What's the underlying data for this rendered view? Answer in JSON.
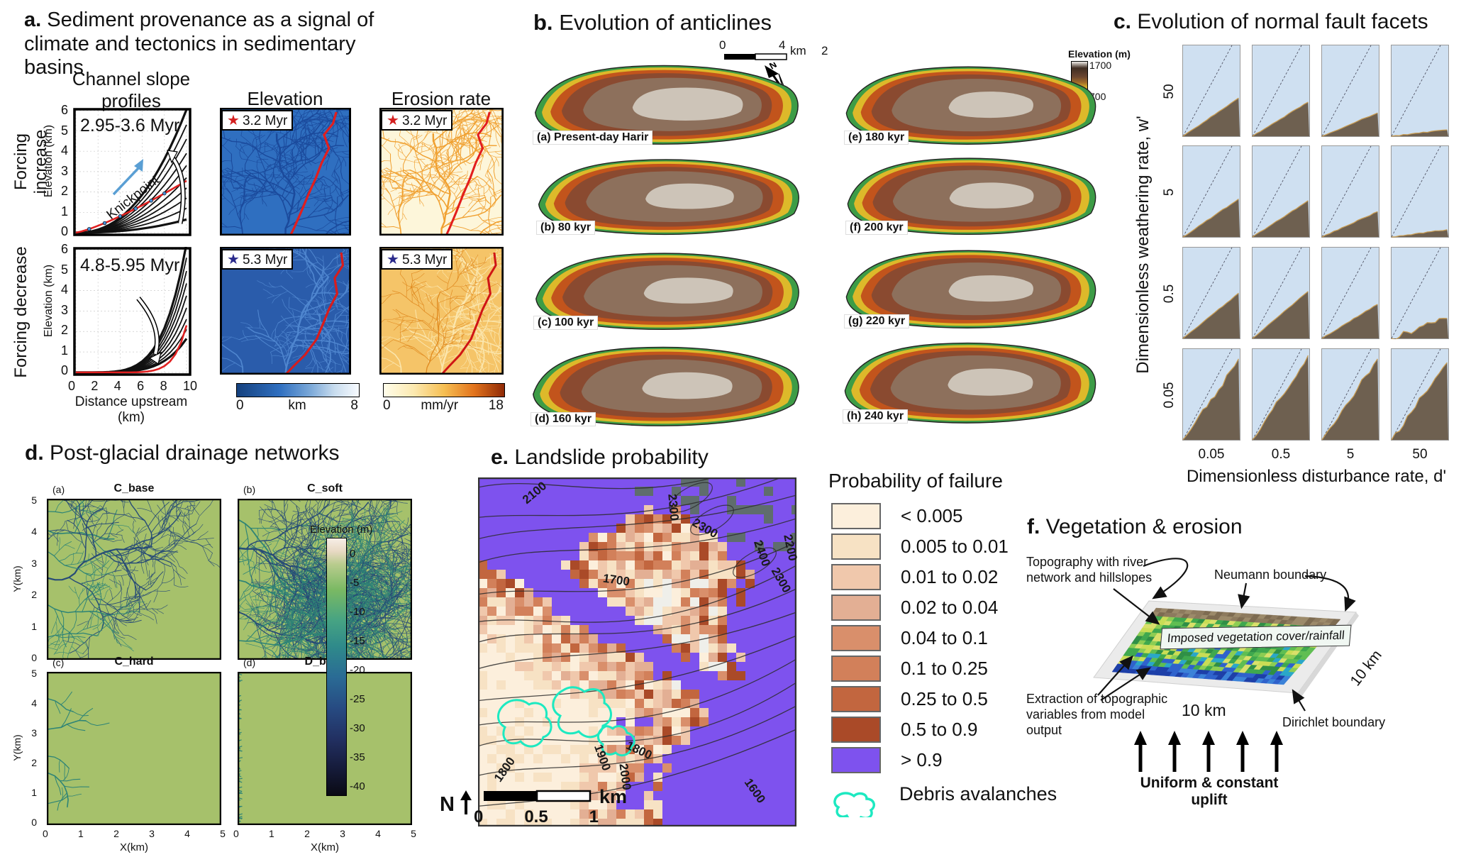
{
  "panel_a": {
    "tag": "a.",
    "title": "Sediment provenance as a signal of climate and tectonics in sedimentary basins",
    "header_channel_1": "Channel slope",
    "header_channel_2": "profiles",
    "header_elevation": "Elevation",
    "header_erosion": "Erosion rate",
    "row_top": "Forcing increase",
    "row_bottom": "Forcing decrease",
    "period_top": "2.95-3.6 Myr",
    "period_bottom": "4.8-5.95 Myr",
    "knickpoint": "Knickpoint",
    "star": "★",
    "star_color_top": "#d42020",
    "star_color_bottom": "#2a2a8c",
    "badge_top": "3.2 Myr",
    "badge_bottom": "5.3 Myr",
    "ylabel": "Elevation (km)",
    "xlabel": "Distance upstream (km)",
    "yticks": [
      "6",
      "5",
      "4",
      "3",
      "2",
      "1",
      "0"
    ],
    "xticks": [
      "0",
      "2",
      "4",
      "6",
      "8",
      "10"
    ],
    "elev_cbar": {
      "min": "0",
      "unit": "km",
      "max": "8"
    },
    "ero_cbar": {
      "min": "0",
      "unit": "mm/yr",
      "max": "18"
    }
  },
  "panel_b": {
    "tag": "b.",
    "title": "Evolution of anticlines",
    "scale_left": "0",
    "scale_right": "4",
    "scale_unit": "km",
    "north": "N",
    "stray_2": "2",
    "cbar_title": "Elevation (m)",
    "cbar_top": "1700",
    "cbar_bottom": "700",
    "maps": [
      {
        "label": "(a) Present-day Harir"
      },
      {
        "label": "(b) 80 kyr"
      },
      {
        "label": "(c) 100 kyr"
      },
      {
        "label": "(d) 160 kyr"
      },
      {
        "label": "(e) 180 kyr"
      },
      {
        "label": "(f) 200 kyr"
      },
      {
        "label": "(g) 220 kyr"
      },
      {
        "label": "(h) 240 kyr"
      }
    ]
  },
  "panel_c": {
    "tag": "c.",
    "title": "Evolution of normal fault facets",
    "ylabel": "Dimensionless weathering rate, w'",
    "xlabel": "Dimensionless disturbance rate, d'",
    "row_values": [
      "50",
      "5",
      "0.5",
      "0.05"
    ],
    "col_values": [
      "0.05",
      "0.5",
      "5",
      "50"
    ],
    "facets": [
      {
        "h": 0.42,
        "j": false
      },
      {
        "h": 0.38,
        "j": false
      },
      {
        "h": 0.26,
        "j": false
      },
      {
        "h": 0.07,
        "j": false
      },
      {
        "h": 0.42,
        "j": false
      },
      {
        "h": 0.4,
        "j": false
      },
      {
        "h": 0.28,
        "j": false
      },
      {
        "h": 0.08,
        "j": false
      },
      {
        "h": 0.5,
        "j": false
      },
      {
        "h": 0.52,
        "j": false
      },
      {
        "h": 0.38,
        "j": false
      },
      {
        "h": 0.24,
        "j": true
      },
      {
        "h": 0.88,
        "j": true
      },
      {
        "h": 0.92,
        "j": true
      },
      {
        "h": 0.9,
        "j": true
      },
      {
        "h": 0.87,
        "j": true
      }
    ]
  },
  "panel_d": {
    "tag": "d.",
    "title": "Post-glacial drainage networks",
    "subplots": [
      {
        "tag": "(a)",
        "name": "C_base"
      },
      {
        "tag": "(b)",
        "name": "C_soft"
      },
      {
        "tag": "(c)",
        "name": "C_hard"
      },
      {
        "tag": "(d)",
        "name": "D_base"
      }
    ],
    "xlabel": "X(km)",
    "ylabel": "Y(km)",
    "axis_ticks": [
      "0",
      "1",
      "2",
      "3",
      "4",
      "5"
    ],
    "cbar_title": "Elevation (m)",
    "cbar_ticks": [
      "0",
      "-5",
      "-10",
      "-15",
      "-20",
      "-25",
      "-30",
      "-35",
      "-40"
    ]
  },
  "panel_e": {
    "tag": "e.",
    "title": "Landslide probability",
    "legend_title": "Probability of failure",
    "classes": [
      {
        "label": "< 0.005",
        "color": "#fcefdc"
      },
      {
        "label": "0.005 to 0.01",
        "color": "#f7e2c4"
      },
      {
        "label": "0.01 to 0.02",
        "color": "#f0c8ac"
      },
      {
        "label": "0.02 to 0.04",
        "color": "#e3af94"
      },
      {
        "label": "0.04 to 0.1",
        "color": "#d98f6b"
      },
      {
        "label": "0.1 to 0.25",
        "color": "#d2805a"
      },
      {
        "label": "0.25 to 0.5",
        "color": "#c2663f"
      },
      {
        "label": "0.5 to 0.9",
        "color": "#aa4a28"
      },
      {
        "label": "> 0.9",
        "color": "#7e52ee"
      }
    ],
    "debris_label": "Debris avalanches",
    "debris_color": "#1de9c1",
    "north": "N",
    "scale_ticks": [
      "0",
      "0.5",
      "1"
    ],
    "scale_unit": "km",
    "contour_labels": [
      "2100",
      "2300",
      "2300",
      "2400",
      "2200",
      "2300",
      "1700",
      "1800",
      "1900",
      "2000",
      "1800",
      "1600"
    ]
  },
  "panel_f": {
    "tag": "f.",
    "title": "Vegetation & erosion",
    "ann_topography": "Topography with river network and hillslopes",
    "ann_neumann": "Neumann boundary",
    "ann_imposed": "Imposed vegetation cover/rainfall",
    "ann_extraction": "Extraction of topographic variables from model output",
    "ann_dirichlet": "Dirichlet boundary",
    "ann_uplift": "Uniform & constant uplift",
    "dim_bottom": "10 km",
    "dim_right": "10 km"
  }
}
